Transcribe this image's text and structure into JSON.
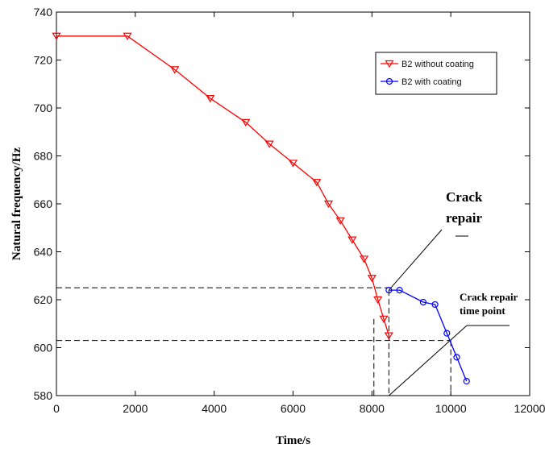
{
  "chart_data": {
    "type": "line",
    "xlabel": "Time/s",
    "ylabel": "Natural frequency/Hz",
    "xlim": [
      0,
      12000
    ],
    "ylim": [
      580,
      740
    ],
    "xticks": [
      0,
      2000,
      4000,
      6000,
      8000,
      10000,
      12000
    ],
    "yticks": [
      580,
      600,
      620,
      640,
      660,
      680,
      700,
      720,
      740
    ],
    "grid": false,
    "legend_position": "top-right",
    "series": [
      {
        "name": "B2 without coating",
        "color": "#ff0000",
        "marker": "triangle-down",
        "x": [
          0,
          1800,
          3000,
          3900,
          4800,
          5400,
          6000,
          6600,
          6900,
          7200,
          7500,
          7800,
          8000,
          8150,
          8300,
          8430
        ],
        "y": [
          730,
          730,
          716,
          704,
          694,
          685,
          677,
          669,
          660,
          653,
          645,
          637,
          629,
          620,
          612,
          605
        ]
      },
      {
        "name": "B2 with coating",
        "color": "#0000ff",
        "marker": "circle",
        "x": [
          8430,
          8700,
          9300,
          9600,
          9900,
          10150,
          10400
        ],
        "y": [
          624,
          624,
          619,
          618,
          606,
          596,
          586
        ]
      }
    ],
    "reference_lines": {
      "horizontal": [
        625,
        603
      ],
      "vertical": [
        8050,
        8430,
        10000
      ]
    },
    "annotations": [
      {
        "lines": [
          "Crack",
          "repair"
        ]
      },
      {
        "lines": [
          "Crack repair",
          "time point"
        ]
      }
    ]
  }
}
